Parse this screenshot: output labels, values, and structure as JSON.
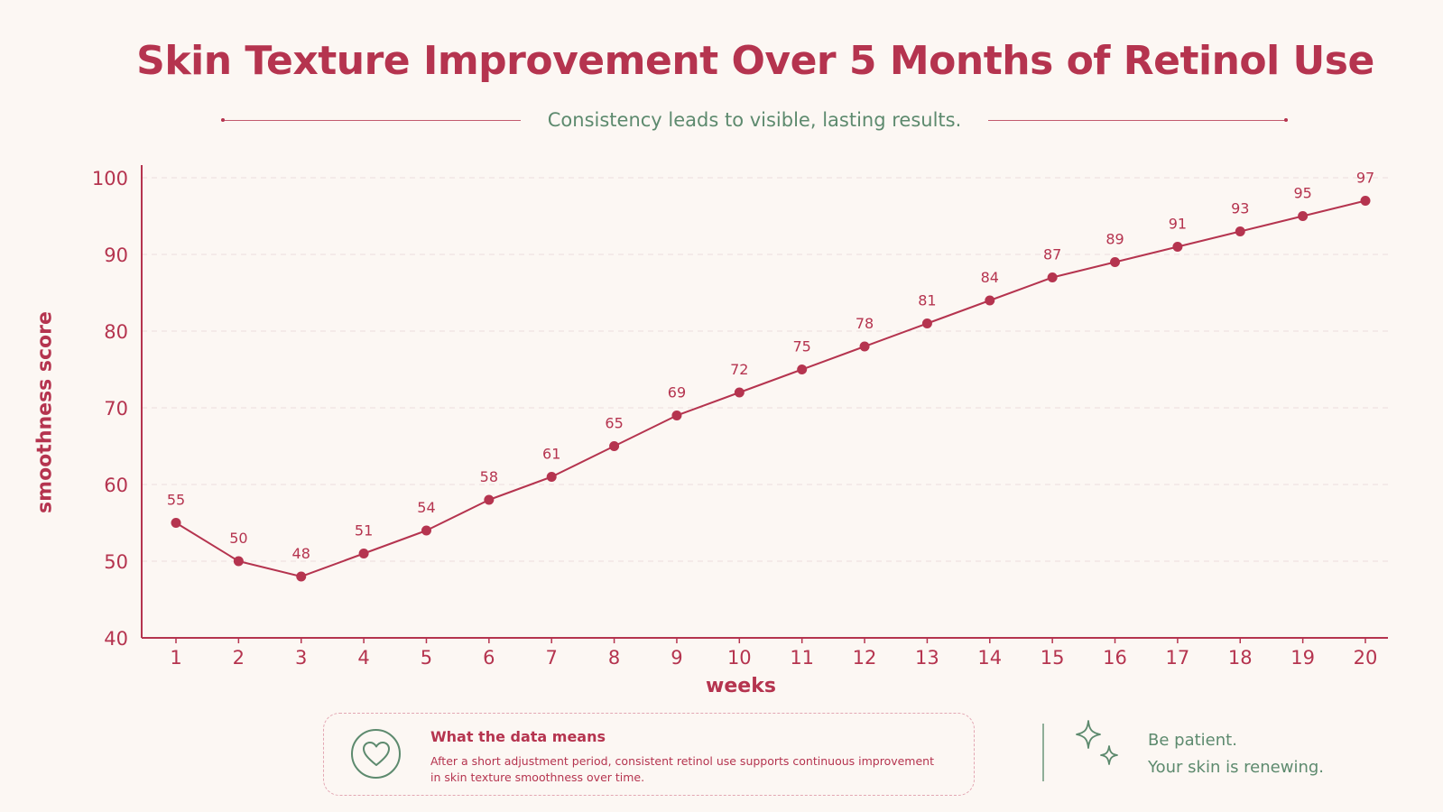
{
  "title": "Skin Texture Improvement Over 5 Months of Retinol Use",
  "subtitle": "Consistency leads to visible, lasting results.",
  "note": {
    "heading": "What the data means",
    "body": "After a short adjustment period, consistent retinol use supports continuous improvement in skin texture smoothness over time.",
    "icon": "heart-icon"
  },
  "side": {
    "line1": "Be patient.",
    "line2": "Your skin is renewing.",
    "icon": "sparkle-icon"
  },
  "colors": {
    "accent": "#b5344f",
    "green": "#5d8a6e",
    "background": "#fcf7f3",
    "grid": "#ecdcdc"
  },
  "chart_data": {
    "type": "line",
    "title": "Skin Texture Improvement Over 5 Months of Retinol Use",
    "subtitle": "Consistency leads to visible, lasting results.",
    "xlabel": "weeks",
    "ylabel": "smoothness score",
    "x": [
      1,
      2,
      3,
      4,
      5,
      6,
      7,
      8,
      9,
      10,
      11,
      12,
      13,
      14,
      15,
      16,
      17,
      18,
      19,
      20
    ],
    "series": [
      {
        "values": [
          55,
          50,
          48,
          51,
          54,
          58,
          61,
          65,
          69,
          72,
          75,
          78,
          81,
          84,
          87,
          89,
          91,
          93,
          95,
          97
        ]
      }
    ],
    "ylim": [
      40,
      100
    ],
    "yticks": [
      40,
      50,
      60,
      70,
      80,
      90,
      100
    ],
    "grid": true,
    "data_labels": true
  }
}
